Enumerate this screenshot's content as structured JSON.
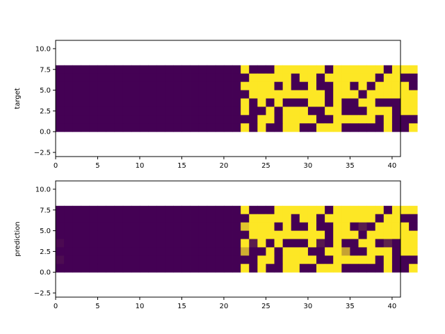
{
  "colors": {
    "low": "#440154",
    "high": "#fde725",
    "axis": "#000000",
    "background": "#ffffff"
  },
  "chart_data": [
    {
      "type": "heatmap",
      "ylabel": "target",
      "xlim": [
        0,
        41
      ],
      "ylim": [
        -3,
        11
      ],
      "xticks": [
        0,
        5,
        10,
        15,
        20,
        25,
        30,
        35,
        40
      ],
      "yticks": [
        -2.5,
        0.0,
        2.5,
        5.0,
        7.5,
        10.0
      ],
      "ytick_labels": [
        "−2.5",
        "0.0",
        "2.5",
        "5.0",
        "7.5",
        "10.0"
      ],
      "cells": [
        "0000000000000000000000100011111101111110111",
        "0000000000000000000000011111011011111101100",
        "0000000000000000000000111101001001101011110",
        "0000000000000000000000011111111101110111111",
        "0000000000000000000000101010001101001100011",
        "0000000000000000000000100101110011000111011",
        "0000000000000000000000001101111001111101000",
        "0000000000000000000000101001100111000001001"
      ],
      "row_order": "top-to-bottom (row 0 = y 7..8, row 7 = y 0..1)"
    },
    {
      "type": "heatmap",
      "ylabel": "prediction",
      "xlim": [
        0,
        41
      ],
      "ylim": [
        -3,
        11
      ],
      "xticks": [
        0,
        5,
        10,
        15,
        20,
        25,
        30,
        35,
        40
      ],
      "yticks": [
        -2.5,
        0.0,
        2.5,
        5.0,
        7.5,
        10.0
      ],
      "ytick_labels": [
        "−2.5",
        "0.0",
        "2.5",
        "5.0",
        "7.5",
        "10.0"
      ],
      "cells": [
        "0000000000000000000000100011111101111110111",
        "0000000000000000000000011111011011111101100",
        "0000000000000000000000111101001001101011110",
        "0000000000000000000000011111111101110111111",
        "0000000000000000000000101010001101001100011",
        "0000000000000000000000100101110011000111011",
        "0000000000000000000000001101111001111101000",
        "0000000000000000000000101001100111000001001"
      ],
      "row_order": "top-to-bottom (row 0 = y 7..8, row 7 = y 0..1)",
      "overrides": [
        {
          "row": 2,
          "col": 22,
          "value": 0.85
        },
        {
          "row": 4,
          "col": 23,
          "value": 0.12
        },
        {
          "row": 5,
          "col": 22,
          "value": 0.75
        },
        {
          "row": 5,
          "col": 34,
          "value": 0.7
        },
        {
          "row": 4,
          "col": 31,
          "value": 0.1
        },
        {
          "row": 2,
          "col": 36,
          "value": 0.12
        },
        {
          "row": 4,
          "col": 39,
          "value": 0.15
        },
        {
          "row": 6,
          "col": 0,
          "value": 0.05
        },
        {
          "row": 4,
          "col": 0,
          "value": 0.04
        }
      ]
    }
  ]
}
